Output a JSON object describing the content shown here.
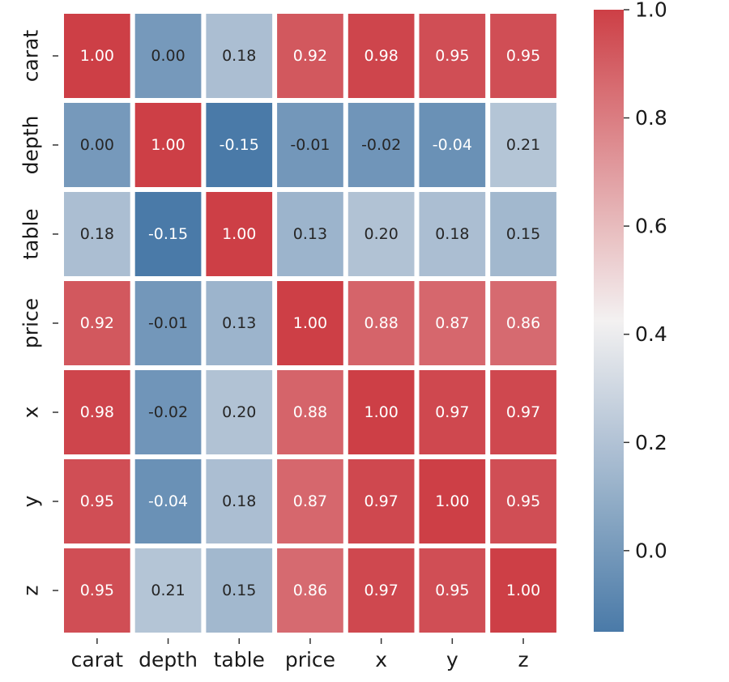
{
  "chart_data": {
    "type": "heatmap",
    "title": "",
    "xlabel": "",
    "ylabel": "",
    "x_labels": [
      "carat",
      "depth",
      "table",
      "price",
      "x",
      "y",
      "z"
    ],
    "y_labels": [
      "carat",
      "depth",
      "table",
      "price",
      "x",
      "y",
      "z"
    ],
    "values": [
      [
        1.0,
        0.0,
        0.18,
        0.92,
        0.98,
        0.95,
        0.95
      ],
      [
        0.0,
        1.0,
        -0.15,
        -0.01,
        -0.02,
        -0.04,
        0.21
      ],
      [
        0.18,
        -0.15,
        1.0,
        0.13,
        0.2,
        0.18,
        0.15
      ],
      [
        0.92,
        -0.01,
        0.13,
        1.0,
        0.88,
        0.87,
        0.86
      ],
      [
        0.98,
        -0.02,
        0.2,
        0.88,
        1.0,
        0.97,
        0.97
      ],
      [
        0.95,
        -0.04,
        0.18,
        0.87,
        0.97,
        1.0,
        0.95
      ],
      [
        0.95,
        0.21,
        0.15,
        0.86,
        0.97,
        0.95,
        1.0
      ]
    ],
    "cell_labels": [
      [
        "1.00",
        "0.00",
        "0.18",
        "0.92",
        "0.98",
        "0.95",
        "0.95"
      ],
      [
        "0.00",
        "1.00",
        "-0.15",
        "-0.01",
        "-0.02",
        "-0.04",
        "0.21"
      ],
      [
        "0.18",
        "-0.15",
        "1.00",
        "0.13",
        "0.20",
        "0.18",
        "0.15"
      ],
      [
        "0.92",
        "-0.01",
        "0.13",
        "1.00",
        "0.88",
        "0.87",
        "0.86"
      ],
      [
        "0.98",
        "-0.02",
        "0.20",
        "0.88",
        "1.00",
        "0.97",
        "0.97"
      ],
      [
        "0.95",
        "-0.04",
        "0.18",
        "0.87",
        "0.97",
        "1.00",
        "0.95"
      ],
      [
        "0.95",
        "0.21",
        "0.15",
        "0.86",
        "0.97",
        "0.95",
        "1.00"
      ]
    ],
    "color_range": [
      -0.15,
      1.0
    ],
    "colormap": {
      "low": "#4a7aa8",
      "mid": "#f3f1f1",
      "high": "#cd3f46",
      "mid_value": 0.425
    },
    "colorbar": {
      "ticks": [
        0.0,
        0.2,
        0.4,
        0.6,
        0.8,
        1.0
      ],
      "tick_labels": [
        "0.0",
        "0.2",
        "0.4",
        "0.6",
        "0.8",
        "1.0"
      ]
    },
    "grid": false,
    "legend": "colorbar-right"
  }
}
